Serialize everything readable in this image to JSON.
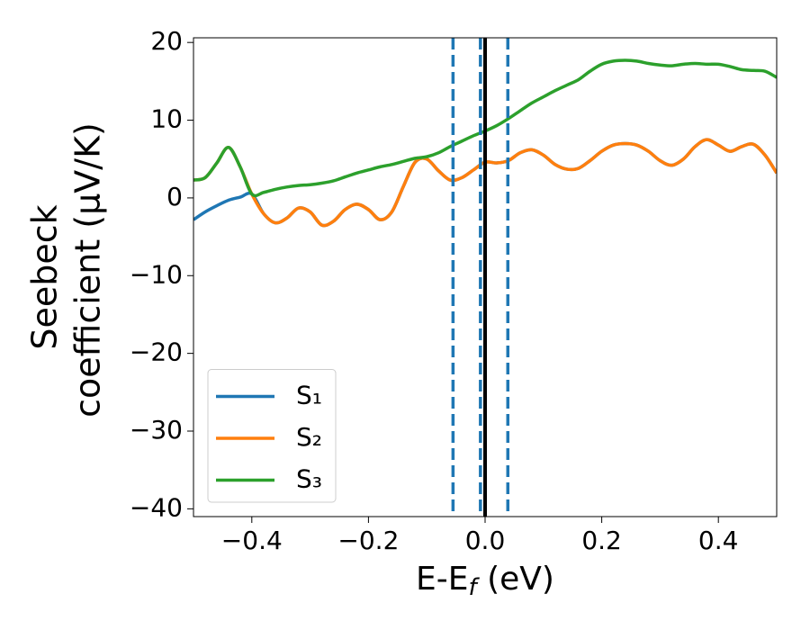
{
  "chart_data": {
    "type": "line",
    "x_label": [
      "E-E",
      "f",
      " (eV)"
    ],
    "y_label": [
      "Seebeck",
      "coefficient  (μV/K)"
    ],
    "x": [
      -0.5,
      -0.48,
      -0.46,
      -0.44,
      -0.42,
      -0.4,
      -0.38,
      -0.36,
      -0.34,
      -0.32,
      -0.3,
      -0.28,
      -0.26,
      -0.24,
      -0.22,
      -0.2,
      -0.18,
      -0.16,
      -0.14,
      -0.12,
      -0.1,
      -0.08,
      -0.06,
      -0.04,
      -0.02,
      0,
      0.02,
      0.04,
      0.06,
      0.08,
      0.1,
      0.12,
      0.14,
      0.16,
      0.18,
      0.2,
      0.22,
      0.24,
      0.26,
      0.28,
      0.3,
      0.32,
      0.34,
      0.36,
      0.38,
      0.4,
      0.42,
      0.44,
      0.46,
      0.48,
      0.5
    ],
    "series": [
      {
        "name": "S₁",
        "color": "#1f77b4",
        "values": [
          -2.8,
          -1.8,
          -1.0,
          -0.3,
          0.1,
          0.5,
          -2.0,
          -3.2,
          -2.6,
          -1.3,
          -1.8,
          -3.5,
          -3.0,
          -1.5,
          -0.8,
          -1.5,
          -2.8,
          -1.8,
          1.5,
          4.6,
          5.0,
          3.5,
          2.3,
          2.6,
          3.6,
          4.6,
          4.5,
          4.8,
          5.8,
          6.2,
          5.5,
          4.3,
          3.7,
          3.8,
          4.8,
          6.0,
          6.8,
          7.0,
          6.8,
          6.0,
          4.8,
          4.2,
          5.0,
          6.6,
          7.5,
          6.8,
          6.0,
          6.6,
          6.9,
          5.5,
          3.2
        ]
      },
      {
        "name": "S₂",
        "color": "#ff7f0e",
        "values": [
          2.3,
          2.6,
          4.5,
          6.5,
          4.0,
          0.5,
          -2.0,
          -3.2,
          -2.6,
          -1.3,
          -1.8,
          -3.5,
          -3.0,
          -1.5,
          -0.8,
          -1.5,
          -2.8,
          -1.8,
          1.5,
          4.6,
          5.0,
          3.5,
          2.3,
          2.6,
          3.6,
          4.6,
          4.5,
          4.8,
          5.8,
          6.2,
          5.5,
          4.3,
          3.7,
          3.8,
          4.8,
          6.0,
          6.8,
          7.0,
          6.8,
          6.0,
          4.8,
          4.2,
          5.0,
          6.6,
          7.5,
          6.8,
          6.0,
          6.6,
          6.9,
          5.5,
          3.2
        ]
      },
      {
        "name": "S₃",
        "color": "#2ca02c",
        "values": [
          2.3,
          2.6,
          4.5,
          6.5,
          4.0,
          0.5,
          0.7,
          1.1,
          1.4,
          1.6,
          1.7,
          1.9,
          2.2,
          2.7,
          3.2,
          3.6,
          4.0,
          4.3,
          4.7,
          5.1,
          5.3,
          5.8,
          6.6,
          7.3,
          8.0,
          8.6,
          9.3,
          10.2,
          11.2,
          12.2,
          13.0,
          13.8,
          14.5,
          15.2,
          16.3,
          17.2,
          17.6,
          17.7,
          17.6,
          17.3,
          17.1,
          17.0,
          17.2,
          17.3,
          17.2,
          17.2,
          16.9,
          16.5,
          16.4,
          16.3,
          15.5
        ]
      }
    ],
    "vlines": [
      {
        "x": -0.055,
        "color": "#1f77b4",
        "style": "dashed"
      },
      {
        "x": -0.008,
        "color": "#1f77b4",
        "style": "dashed"
      },
      {
        "x": 0.039,
        "color": "#1f77b4",
        "style": "dashed"
      },
      {
        "x": 0,
        "color": "#000000",
        "style": "solid"
      }
    ],
    "xlim": [
      -0.5,
      0.5
    ],
    "ylim": [
      -41,
      20.6
    ],
    "xticks": [
      {
        "value": -0.4,
        "label": "−0.4"
      },
      {
        "value": -0.2,
        "label": "−0.2"
      },
      {
        "value": 0,
        "label": "0.0"
      },
      0.2,
      0.4
    ],
    "yticks": [
      {
        "value": -40,
        "label": "−40"
      },
      {
        "value": -30,
        "label": "−30"
      },
      {
        "value": -20,
        "label": "−20"
      },
      {
        "value": -10,
        "label": "−10"
      },
      0,
      10,
      20
    ],
    "grid": false,
    "legend": "lower left"
  }
}
